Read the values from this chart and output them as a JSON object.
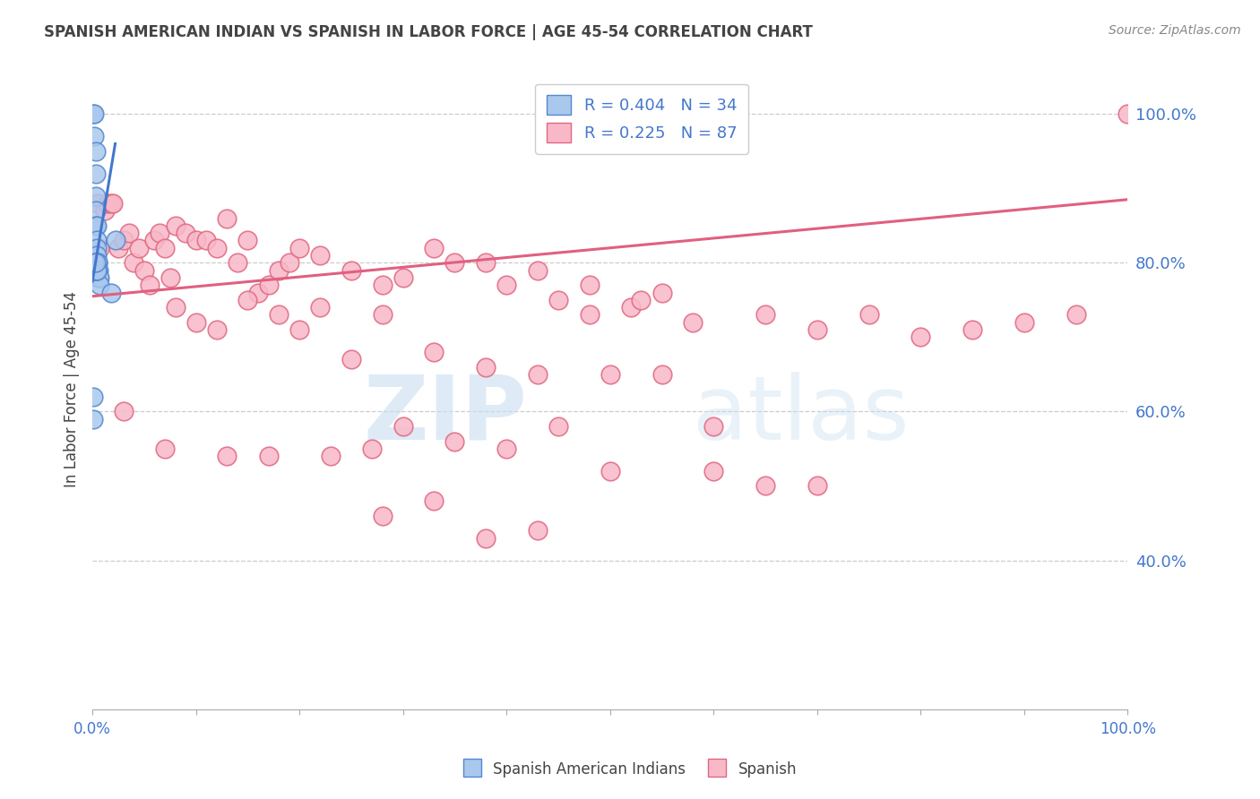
{
  "title": "SPANISH AMERICAN INDIAN VS SPANISH IN LABOR FORCE | AGE 45-54 CORRELATION CHART",
  "source": "Source: ZipAtlas.com",
  "ylabel": "In Labor Force | Age 45-54",
  "right_ytick_labels": [
    "100.0%",
    "80.0%",
    "60.0%",
    "40.0%"
  ],
  "right_ytick_values": [
    1.0,
    0.8,
    0.6,
    0.4
  ],
  "legend_label_blue": "R = 0.404   N = 34",
  "legend_label_pink": "R = 0.225   N = 87",
  "watermark_zip": "ZIP",
  "watermark_atlas": "atlas",
  "blue_scatter_x": [
    0.001,
    0.002,
    0.002,
    0.003,
    0.003,
    0.003,
    0.003,
    0.003,
    0.004,
    0.004,
    0.004,
    0.004,
    0.004,
    0.005,
    0.005,
    0.005,
    0.005,
    0.006,
    0.006,
    0.006,
    0.007,
    0.007,
    0.002,
    0.002,
    0.003,
    0.003,
    0.004,
    0.004,
    0.002,
    0.003,
    0.018,
    0.022,
    0.001,
    0.001
  ],
  "blue_scatter_y": [
    1.0,
    1.0,
    0.97,
    0.95,
    0.92,
    0.89,
    0.87,
    0.85,
    0.85,
    0.83,
    0.82,
    0.81,
    0.8,
    0.8,
    0.8,
    0.79,
    0.79,
    0.79,
    0.78,
    0.78,
    0.78,
    0.77,
    0.79,
    0.79,
    0.79,
    0.79,
    0.79,
    0.79,
    0.8,
    0.8,
    0.76,
    0.83,
    0.62,
    0.59
  ],
  "pink_scatter_x": [
    0.005,
    0.007,
    0.012,
    0.015,
    0.018,
    0.02,
    0.025,
    0.03,
    0.035,
    0.04,
    0.045,
    0.05,
    0.055,
    0.06,
    0.065,
    0.07,
    0.075,
    0.08,
    0.09,
    0.1,
    0.11,
    0.12,
    0.13,
    0.14,
    0.15,
    0.16,
    0.17,
    0.18,
    0.19,
    0.2,
    0.22,
    0.25,
    0.28,
    0.3,
    0.33,
    0.35,
    0.38,
    0.4,
    0.43,
    0.45,
    0.48,
    0.5,
    0.52,
    0.55,
    0.58,
    0.6,
    0.65,
    0.7,
    0.75,
    0.8,
    0.85,
    0.9,
    0.95,
    1.0,
    0.1,
    0.15,
    0.2,
    0.25,
    0.3,
    0.35,
    0.4,
    0.08,
    0.12,
    0.18,
    0.22,
    0.28,
    0.33,
    0.38,
    0.43,
    0.48,
    0.53,
    0.03,
    0.07,
    0.13,
    0.17,
    0.23,
    0.27,
    0.45,
    0.5,
    0.55,
    0.6,
    0.28,
    0.33,
    0.38,
    0.43,
    0.65,
    0.7
  ],
  "pink_scatter_y": [
    0.88,
    0.82,
    0.87,
    0.88,
    0.88,
    0.88,
    0.82,
    0.83,
    0.84,
    0.8,
    0.82,
    0.79,
    0.77,
    0.83,
    0.84,
    0.82,
    0.78,
    0.85,
    0.84,
    0.83,
    0.83,
    0.82,
    0.86,
    0.8,
    0.83,
    0.76,
    0.77,
    0.79,
    0.8,
    0.82,
    0.81,
    0.79,
    0.77,
    0.78,
    0.82,
    0.8,
    0.8,
    0.77,
    0.79,
    0.75,
    0.73,
    0.65,
    0.74,
    0.76,
    0.72,
    0.58,
    0.73,
    0.71,
    0.73,
    0.7,
    0.71,
    0.72,
    0.73,
    1.0,
    0.72,
    0.75,
    0.71,
    0.67,
    0.58,
    0.56,
    0.55,
    0.74,
    0.71,
    0.73,
    0.74,
    0.73,
    0.68,
    0.66,
    0.65,
    0.77,
    0.75,
    0.6,
    0.55,
    0.54,
    0.54,
    0.54,
    0.55,
    0.58,
    0.52,
    0.65,
    0.52,
    0.46,
    0.48,
    0.43,
    0.44,
    0.5,
    0.5
  ],
  "blue_line_x": [
    0.0,
    0.022
  ],
  "blue_line_y": [
    0.775,
    0.96
  ],
  "pink_line_x": [
    0.0,
    1.0
  ],
  "pink_line_y": [
    0.755,
    0.885
  ],
  "blue_color": "#aac8ee",
  "blue_edge_color": "#5588cc",
  "pink_color": "#f8b8c8",
  "pink_edge_color": "#e06880",
  "blue_line_color": "#4477cc",
  "pink_line_color": "#e06080",
  "background_color": "#ffffff",
  "grid_color": "#cccccc",
  "title_color": "#444444",
  "right_label_color": "#4477cc",
  "source_color": "#888888",
  "bottom_label_color": "#444444",
  "xlim": [
    0.0,
    1.0
  ],
  "ylim": [
    0.2,
    1.06
  ]
}
